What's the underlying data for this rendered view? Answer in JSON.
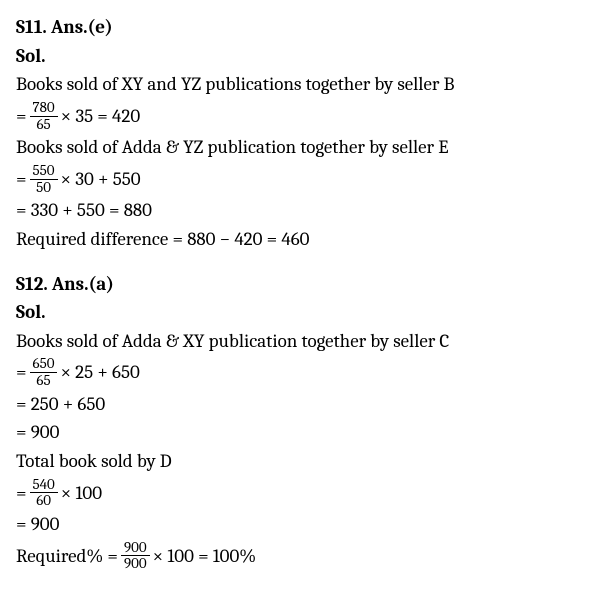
{
  "s11": {
    "header": "S11. Ans.(e)",
    "sol_label": "Sol.",
    "line1": "Books sold of XY and YZ publications together by seller B",
    "eq1_prefix": "= ",
    "eq1_frac_num": "780",
    "eq1_frac_den": "65",
    "eq1_suffix": " × 35 = 420",
    "line2": "Books sold of Adda & YZ publication together by seller E",
    "eq2_prefix": "= ",
    "eq2_frac_num": "550",
    "eq2_frac_den": "50",
    "eq2_suffix": " × 30 + 550",
    "eq3": "= 330 + 550 = 880",
    "eq4": "Required difference = 880 − 420 = 460"
  },
  "s12": {
    "header": "S12. Ans.(a)",
    "sol_label": "Sol.",
    "line1": "Books sold of Adda & XY publication together by seller C",
    "eq1_prefix": "= ",
    "eq1_frac_num": "650",
    "eq1_frac_den": "65",
    "eq1_suffix": " × 25 + 650",
    "eq2": "= 250 + 650",
    "eq3": "= 900",
    "line2": "Total book sold by D",
    "eq4_prefix": "= ",
    "eq4_frac_num": "540",
    "eq4_frac_den": "60",
    "eq4_suffix": " × 100",
    "eq5": "= 900",
    "eq6_prefix": "Required% = ",
    "eq6_frac_num": "900",
    "eq6_frac_den": "900",
    "eq6_suffix": " × 100 = 100%"
  }
}
